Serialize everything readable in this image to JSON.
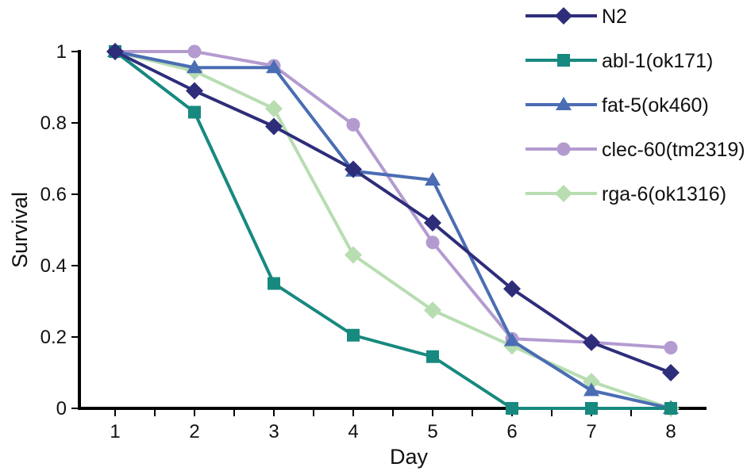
{
  "chart_data": {
    "type": "line",
    "title": "",
    "xlabel": "Day",
    "ylabel": "Survival",
    "x": [
      1,
      2,
      3,
      4,
      5,
      6,
      7,
      8
    ],
    "x_ticks": [
      "1",
      "2",
      "3",
      "4",
      "5",
      "6",
      "7",
      "8"
    ],
    "y_ticks": [
      "0",
      "0.2",
      "0.4",
      "0.6",
      "0.8",
      "1"
    ],
    "xlim": [
      0.55,
      8.45
    ],
    "ylim": [
      0,
      1
    ],
    "grid": false,
    "legend_position": "top-right",
    "series": [
      {
        "name": "N2",
        "color": "#2e2d7a",
        "marker": "diamond",
        "values": [
          1.0,
          0.89,
          0.79,
          0.67,
          0.52,
          0.335,
          0.185,
          0.1
        ]
      },
      {
        "name": "abl-1(ok171)",
        "color": "#17897f",
        "marker": "square",
        "values": [
          1.0,
          0.83,
          0.35,
          0.205,
          0.145,
          0.0,
          0.0,
          0.0
        ]
      },
      {
        "name": "fat-5(ok460)",
        "color": "#4a6db3",
        "marker": "triangle",
        "values": [
          1.0,
          0.955,
          0.955,
          0.665,
          0.64,
          0.19,
          0.05,
          0.0
        ]
      },
      {
        "name": "clec-60(tm2319)",
        "color": "#b39bd0",
        "marker": "circle",
        "values": [
          1.0,
          1.0,
          0.96,
          0.795,
          0.465,
          0.195,
          0.185,
          0.17
        ]
      },
      {
        "name": "rga-6(ok1316)",
        "color": "#b7ddb1",
        "marker": "diamond",
        "values": [
          1.0,
          0.945,
          0.84,
          0.43,
          0.275,
          0.175,
          0.075,
          0.0
        ]
      }
    ]
  }
}
